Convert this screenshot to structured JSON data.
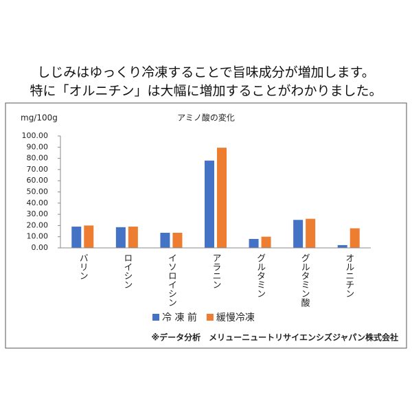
{
  "header": {
    "lines": [
      "しじみはゆっくり冷凍することで旨味成分が増加します。",
      "特に「オルニチン」は大幅に増加することがわかりました。"
    ]
  },
  "chart_data": {
    "type": "bar",
    "title": "アミノ酸の変化",
    "y_label": "mg/100g",
    "categories": [
      "バリン",
      "ロイシン",
      "イソロイシン",
      "アラニン",
      "グルタミン",
      "グルタミン酸",
      "オルニチン"
    ],
    "series": [
      {
        "name": "冷 凍 前",
        "color": "#4472c4",
        "values": [
          19,
          18.5,
          13.5,
          78,
          8,
          25,
          2.5
        ]
      },
      {
        "name": "緩慢冷凍",
        "color": "#ed7d31",
        "values": [
          20,
          19,
          13.5,
          89.5,
          10,
          26,
          17.5
        ]
      }
    ],
    "ylim": [
      0,
      100
    ],
    "yticks": [
      {
        "value": 0,
        "label": "0.00"
      },
      {
        "value": 10,
        "label": "10.00"
      },
      {
        "value": 20,
        "label": "20.00"
      },
      {
        "value": 30,
        "label": "30.00"
      },
      {
        "value": 40,
        "label": "40.00"
      },
      {
        "value": 50,
        "label": "50.00"
      },
      {
        "value": 60,
        "label": "60.00"
      },
      {
        "value": 70,
        "label": "70.00"
      },
      {
        "value": 80,
        "label": "80.00"
      },
      {
        "value": 90,
        "label": "90.00"
      },
      {
        "value": 100,
        "label": "100.00"
      }
    ],
    "grid": false,
    "legend": "bottom",
    "note": "※データ分析　メリューニュートリサイエンシズジャパン株式会社"
  }
}
